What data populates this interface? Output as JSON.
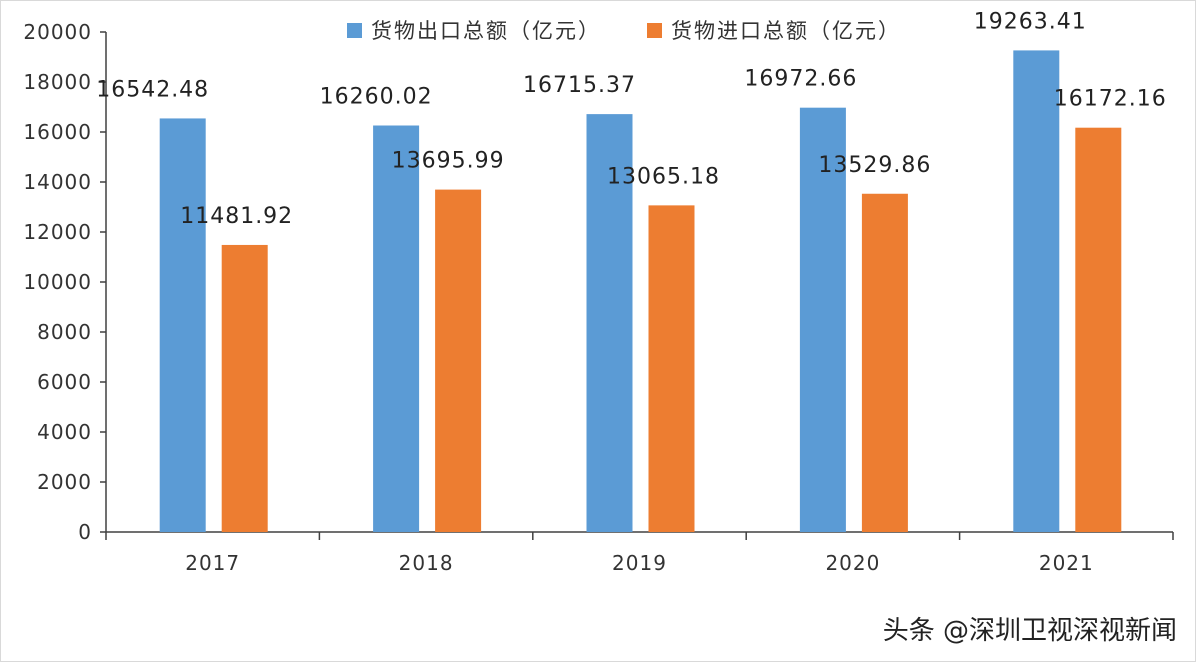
{
  "chart_data": {
    "type": "bar",
    "categories": [
      "2017",
      "2018",
      "2019",
      "2020",
      "2021"
    ],
    "series": [
      {
        "name": "货物出口总额（亿元）",
        "values": [
          16542.48,
          16260.02,
          16715.37,
          16972.66,
          19263.41
        ],
        "labels": [
          "16542.48",
          "16260.02",
          "16715.37",
          "16972.66",
          "19263.41"
        ],
        "color": "#5B9BD5"
      },
      {
        "name": "货物进口总额（亿元）",
        "values": [
          11481.92,
          13695.99,
          13065.18,
          13529.86,
          16172.16
        ],
        "labels": [
          "11481.92",
          "13695.99",
          "13065.18",
          "13529.86",
          "16172.16"
        ],
        "color": "#ED7D31"
      }
    ],
    "ylim": [
      0,
      20000
    ],
    "yticks": [
      0,
      2000,
      4000,
      6000,
      8000,
      10000,
      12000,
      14000,
      16000,
      18000,
      20000
    ],
    "grid": false,
    "legend_position": "top-center"
  },
  "watermark": "头条 @深圳卫视深视新闻"
}
